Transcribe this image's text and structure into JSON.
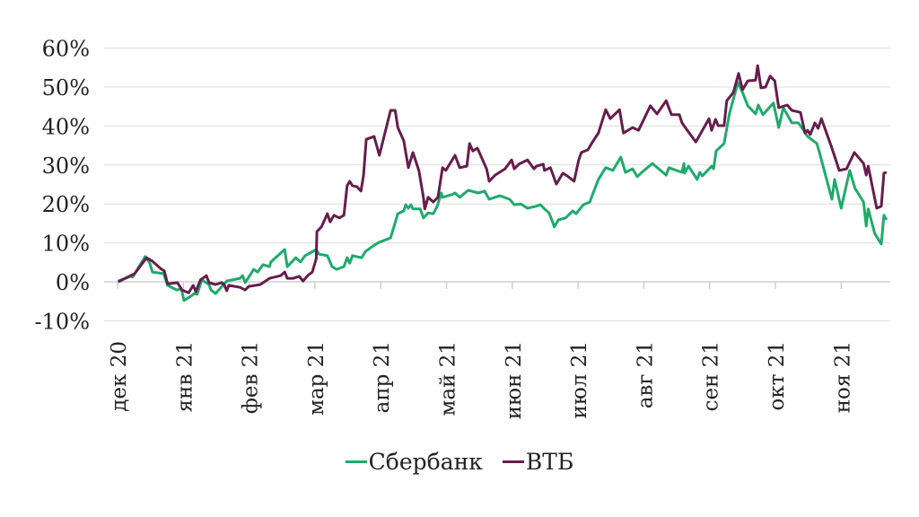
{
  "chart_data": {
    "type": "line",
    "title": "",
    "xlabel": "",
    "ylabel": "",
    "ylim": [
      -10,
      60
    ],
    "xlim": [
      0,
      11.8
    ],
    "grid": true,
    "legend_position": "bottom",
    "y_ticks": [
      -10,
      0,
      10,
      20,
      30,
      40,
      50,
      60
    ],
    "y_tick_labels": [
      "-10%",
      "0%",
      "10%",
      "20%",
      "30%",
      "40%",
      "50%",
      "60%"
    ],
    "x_ticks": [
      0,
      1,
      2,
      3,
      4,
      5,
      6,
      7,
      8,
      9,
      10,
      11
    ],
    "x_tick_labels": [
      "дек 20",
      "янв 21",
      "фев 21",
      "мар 21",
      "апр 21",
      "май 21",
      "июн 21",
      "июл 21",
      "авг 21",
      "сен 21",
      "окт 21",
      "ноя 21"
    ],
    "series": [
      {
        "name": "Сбербанк",
        "color": "#1faa6c",
        "points": [
          [
            0.01,
            0.2
          ],
          [
            0.22,
            1.6
          ],
          [
            0.23,
            1.2
          ],
          [
            0.3,
            3.2
          ],
          [
            0.42,
            6.5
          ],
          [
            0.49,
            4.8
          ],
          [
            0.53,
            2.5
          ],
          [
            0.7,
            2.1
          ],
          [
            0.76,
            -0.9
          ],
          [
            0.9,
            -2.1
          ],
          [
            0.97,
            -1.8
          ],
          [
            1.01,
            -4.8
          ],
          [
            1.11,
            -3.7
          ],
          [
            1.17,
            -3.0
          ],
          [
            1.21,
            -3.2
          ],
          [
            1.28,
            0.5
          ],
          [
            1.39,
            -0.7
          ],
          [
            1.42,
            -2.1
          ],
          [
            1.49,
            -3.0
          ],
          [
            1.6,
            -0.9
          ],
          [
            1.66,
            0.2
          ],
          [
            1.86,
            0.9
          ],
          [
            1.9,
            1.6
          ],
          [
            1.94,
            -0.2
          ],
          [
            2.07,
            3.2
          ],
          [
            2.13,
            2.5
          ],
          [
            2.21,
            4.4
          ],
          [
            2.31,
            3.9
          ],
          [
            2.33,
            5.1
          ],
          [
            2.54,
            8.3
          ],
          [
            2.58,
            3.9
          ],
          [
            2.71,
            6.2
          ],
          [
            2.78,
            5.1
          ],
          [
            2.85,
            6.7
          ],
          [
            3.02,
            8.3
          ],
          [
            3.06,
            7.1
          ],
          [
            3.19,
            6.7
          ],
          [
            3.26,
            3.9
          ],
          [
            3.33,
            3.2
          ],
          [
            3.44,
            3.9
          ],
          [
            3.49,
            6.2
          ],
          [
            3.53,
            4.8
          ],
          [
            3.57,
            6.7
          ],
          [
            3.71,
            6.2
          ],
          [
            3.77,
            7.8
          ],
          [
            3.9,
            9.4
          ],
          [
            3.97,
            10.1
          ],
          [
            4.15,
            11.3
          ],
          [
            4.26,
            17.5
          ],
          [
            4.35,
            18.2
          ],
          [
            4.38,
            19.8
          ],
          [
            4.42,
            18.9
          ],
          [
            4.46,
            19.8
          ],
          [
            4.49,
            18.7
          ],
          [
            4.6,
            18.7
          ],
          [
            4.65,
            16.4
          ],
          [
            4.72,
            17.7
          ],
          [
            4.8,
            17.5
          ],
          [
            4.86,
            19.4
          ],
          [
            4.92,
            22.8
          ],
          [
            4.94,
            21.7
          ],
          [
            5.08,
            22.4
          ],
          [
            5.13,
            22.8
          ],
          [
            5.2,
            21.7
          ],
          [
            5.33,
            23.5
          ],
          [
            5.38,
            23.3
          ],
          [
            5.48,
            22.8
          ],
          [
            5.58,
            23.3
          ],
          [
            5.65,
            21.2
          ],
          [
            5.81,
            22.1
          ],
          [
            5.96,
            21.2
          ],
          [
            6.03,
            19.8
          ],
          [
            6.13,
            20.0
          ],
          [
            6.23,
            18.9
          ],
          [
            6.36,
            19.4
          ],
          [
            6.43,
            19.8
          ],
          [
            6.49,
            18.7
          ],
          [
            6.56,
            17.7
          ],
          [
            6.64,
            14.1
          ],
          [
            6.7,
            15.9
          ],
          [
            6.81,
            16.4
          ],
          [
            6.92,
            18.2
          ],
          [
            6.97,
            17.5
          ],
          [
            7.08,
            19.8
          ],
          [
            7.18,
            20.5
          ],
          [
            7.22,
            22.4
          ],
          [
            7.31,
            26.3
          ],
          [
            7.42,
            29.3
          ],
          [
            7.53,
            28.6
          ],
          [
            7.65,
            32.0
          ],
          [
            7.72,
            28.1
          ],
          [
            7.83,
            29.0
          ],
          [
            7.9,
            27.0
          ],
          [
            7.97,
            28.1
          ],
          [
            8.13,
            30.4
          ],
          [
            8.34,
            27.4
          ],
          [
            8.38,
            29.3
          ],
          [
            8.58,
            28.1
          ],
          [
            8.61,
            30.4
          ],
          [
            8.62,
            27.9
          ],
          [
            8.68,
            29.7
          ],
          [
            8.81,
            26.3
          ],
          [
            8.85,
            28.1
          ],
          [
            8.89,
            27.2
          ],
          [
            9.03,
            29.7
          ],
          [
            9.06,
            29.0
          ],
          [
            9.1,
            33.6
          ],
          [
            9.22,
            35.5
          ],
          [
            9.3,
            43.1
          ],
          [
            9.43,
            51.2
          ],
          [
            9.5,
            48.6
          ],
          [
            9.58,
            45.2
          ],
          [
            9.7,
            43.1
          ],
          [
            9.74,
            45.4
          ],
          [
            9.81,
            42.9
          ],
          [
            9.97,
            45.9
          ],
          [
            10.05,
            39.6
          ],
          [
            10.12,
            44.7
          ],
          [
            10.25,
            40.8
          ],
          [
            10.35,
            40.8
          ],
          [
            10.49,
            37.3
          ],
          [
            10.63,
            35.5
          ],
          [
            10.67,
            33.2
          ],
          [
            10.86,
            21.2
          ],
          [
            10.9,
            26.3
          ],
          [
            11.0,
            18.9
          ],
          [
            11.13,
            28.6
          ],
          [
            11.21,
            24.0
          ],
          [
            11.34,
            20.5
          ],
          [
            11.38,
            14.3
          ],
          [
            11.41,
            18.7
          ],
          [
            11.51,
            12.4
          ],
          [
            11.61,
            9.7
          ],
          [
            11.65,
            17.1
          ],
          [
            11.69,
            15.9
          ]
        ]
      },
      {
        "name": "ВТБ",
        "color": "#661d4c",
        "points": [
          [
            0.01,
            0
          ],
          [
            0.26,
            2.1
          ],
          [
            0.44,
            6.2
          ],
          [
            0.53,
            5.3
          ],
          [
            0.67,
            3.2
          ],
          [
            0.71,
            2.8
          ],
          [
            0.76,
            -0.5
          ],
          [
            0.91,
            -0.2
          ],
          [
            0.98,
            -2.1
          ],
          [
            1.08,
            -2.8
          ],
          [
            1.15,
            -0.9
          ],
          [
            1.19,
            -2.5
          ],
          [
            1.26,
            0.5
          ],
          [
            1.35,
            1.6
          ],
          [
            1.39,
            -0.2
          ],
          [
            1.49,
            -0.7
          ],
          [
            1.58,
            -0.2
          ],
          [
            1.62,
            -0.7
          ],
          [
            1.66,
            -2.3
          ],
          [
            1.69,
            -0.9
          ],
          [
            1.86,
            -1.4
          ],
          [
            1.94,
            -2.1
          ],
          [
            1.99,
            -1.2
          ],
          [
            2.17,
            -0.7
          ],
          [
            2.31,
            0.9
          ],
          [
            2.48,
            1.6
          ],
          [
            2.54,
            2.5
          ],
          [
            2.58,
            0.9
          ],
          [
            2.67,
            0.9
          ],
          [
            2.76,
            1.4
          ],
          [
            2.82,
            0.2
          ],
          [
            2.89,
            1.6
          ],
          [
            2.96,
            2.5
          ],
          [
            3.02,
            6.0
          ],
          [
            3.03,
            12.9
          ],
          [
            3.1,
            14.1
          ],
          [
            3.19,
            17.5
          ],
          [
            3.23,
            15.4
          ],
          [
            3.29,
            17.1
          ],
          [
            3.37,
            16.4
          ],
          [
            3.44,
            17.1
          ],
          [
            3.49,
            24.7
          ],
          [
            3.53,
            25.8
          ],
          [
            3.57,
            24.7
          ],
          [
            3.64,
            24.4
          ],
          [
            3.7,
            23.3
          ],
          [
            3.74,
            27.4
          ],
          [
            3.78,
            36.6
          ],
          [
            3.9,
            37.3
          ],
          [
            3.98,
            32.5
          ],
          [
            4.15,
            44.0
          ],
          [
            4.22,
            44.0
          ],
          [
            4.26,
            39.6
          ],
          [
            4.35,
            36.2
          ],
          [
            4.42,
            29.3
          ],
          [
            4.49,
            33.2
          ],
          [
            4.58,
            28.6
          ],
          [
            4.65,
            21.7
          ],
          [
            4.67,
            18.7
          ],
          [
            4.72,
            21.7
          ],
          [
            4.8,
            20.5
          ],
          [
            4.87,
            21.7
          ],
          [
            4.94,
            29.3
          ],
          [
            4.99,
            28.6
          ],
          [
            5.13,
            32.5
          ],
          [
            5.2,
            29.3
          ],
          [
            5.31,
            29.7
          ],
          [
            5.35,
            35.5
          ],
          [
            5.4,
            33.6
          ],
          [
            5.47,
            34.3
          ],
          [
            5.61,
            29.0
          ],
          [
            5.65,
            25.8
          ],
          [
            5.74,
            27.4
          ],
          [
            5.89,
            29.0
          ],
          [
            5.99,
            31.3
          ],
          [
            6.03,
            29.0
          ],
          [
            6.1,
            30.2
          ],
          [
            6.23,
            31.3
          ],
          [
            6.33,
            29.0
          ],
          [
            6.37,
            29.7
          ],
          [
            6.47,
            30.2
          ],
          [
            6.49,
            28.6
          ],
          [
            6.58,
            29.3
          ],
          [
            6.67,
            25.1
          ],
          [
            6.77,
            27.9
          ],
          [
            6.85,
            27.0
          ],
          [
            6.94,
            25.8
          ],
          [
            7.01,
            31.3
          ],
          [
            7.05,
            33.2
          ],
          [
            7.15,
            33.9
          ],
          [
            7.22,
            35.9
          ],
          [
            7.31,
            38.2
          ],
          [
            7.42,
            44.2
          ],
          [
            7.49,
            41.9
          ],
          [
            7.63,
            44.2
          ],
          [
            7.69,
            38.2
          ],
          [
            7.83,
            39.6
          ],
          [
            7.92,
            38.9
          ],
          [
            8.1,
            45.2
          ],
          [
            8.2,
            43.1
          ],
          [
            8.34,
            46.5
          ],
          [
            8.42,
            42.9
          ],
          [
            8.54,
            42.9
          ],
          [
            8.58,
            40.8
          ],
          [
            8.79,
            35.9
          ],
          [
            8.99,
            41.9
          ],
          [
            9.03,
            38.9
          ],
          [
            9.09,
            41.7
          ],
          [
            9.13,
            40.1
          ],
          [
            9.22,
            40.1
          ],
          [
            9.26,
            46.5
          ],
          [
            9.36,
            48.6
          ],
          [
            9.44,
            53.5
          ],
          [
            9.5,
            49.3
          ],
          [
            9.58,
            51.6
          ],
          [
            9.7,
            51.8
          ],
          [
            9.73,
            55.5
          ],
          [
            9.78,
            49.8
          ],
          [
            9.85,
            50.0
          ],
          [
            9.92,
            52.8
          ],
          [
            9.99,
            51.6
          ],
          [
            10.05,
            44.7
          ],
          [
            10.18,
            45.4
          ],
          [
            10.25,
            44.0
          ],
          [
            10.38,
            43.5
          ],
          [
            10.45,
            38.2
          ],
          [
            10.49,
            38.9
          ],
          [
            10.53,
            37.8
          ],
          [
            10.6,
            40.8
          ],
          [
            10.65,
            39.4
          ],
          [
            10.7,
            41.9
          ],
          [
            10.86,
            34.3
          ],
          [
            10.97,
            28.6
          ],
          [
            11.08,
            29.0
          ],
          [
            11.2,
            33.2
          ],
          [
            11.34,
            30.4
          ],
          [
            11.38,
            27.4
          ],
          [
            11.41,
            29.7
          ],
          [
            11.54,
            18.9
          ],
          [
            11.61,
            19.4
          ],
          [
            11.65,
            27.9
          ],
          [
            11.69,
            28.1
          ]
        ]
      }
    ]
  }
}
